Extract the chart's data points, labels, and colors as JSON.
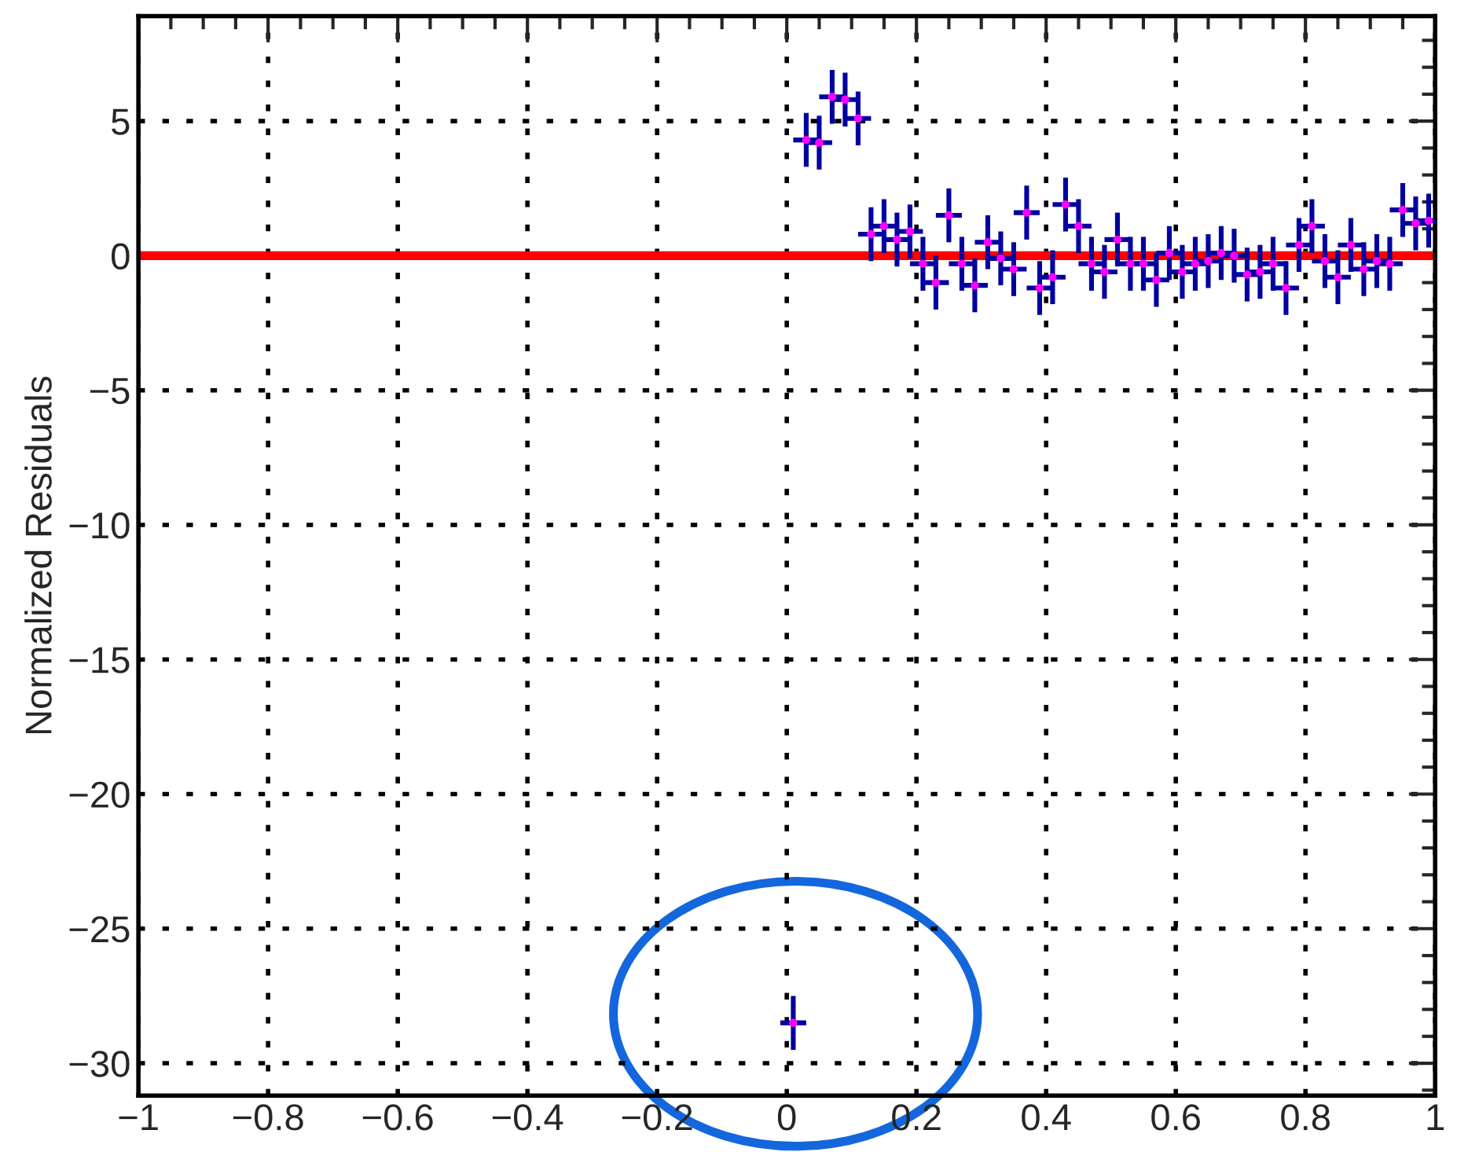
{
  "chart_data": {
    "type": "scatter",
    "ylabel": "Normalized Residuals",
    "xlim": [
      -1,
      1
    ],
    "ylim": [
      -31.2,
      8.9
    ],
    "xticks": [
      {
        "value": -1,
        "label": "−1"
      },
      {
        "value": -0.8,
        "label": "−0.8"
      },
      {
        "value": -0.6,
        "label": "−0.6"
      },
      {
        "value": -0.4,
        "label": "−0.4"
      },
      {
        "value": -0.2,
        "label": "−0.2"
      },
      0,
      0.2,
      0.4,
      0.6,
      0.8,
      1
    ],
    "yticks": [
      {
        "value": -30,
        "label": "−30"
      },
      {
        "value": -25,
        "label": "−25"
      },
      {
        "value": -20,
        "label": "−20"
      },
      {
        "value": -15,
        "label": "−15"
      },
      {
        "value": -10,
        "label": "−10"
      },
      {
        "value": -5,
        "label": "−5"
      },
      0,
      5
    ],
    "grid": true,
    "marker": "circle",
    "ref_lines": [
      {
        "axis": "y",
        "value": 0,
        "color": "#ff0000",
        "line_style": "solid"
      }
    ],
    "series": [
      {
        "color": "#ff00ff",
        "x": [
          0.01,
          0.03,
          0.05,
          0.07,
          0.09,
          0.11,
          0.13,
          0.15,
          0.17,
          0.19,
          0.21,
          0.23,
          0.25,
          0.27,
          0.29,
          0.31,
          0.33,
          0.35,
          0.37,
          0.39,
          0.41,
          0.43,
          0.45,
          0.47,
          0.49,
          0.51,
          0.53,
          0.55,
          0.57,
          0.59,
          0.61,
          0.63,
          0.65,
          0.67,
          0.69,
          0.71,
          0.73,
          0.75,
          0.77,
          0.79,
          0.81,
          0.83,
          0.85,
          0.87,
          0.89,
          0.91,
          0.93,
          0.95,
          0.97,
          0.99
        ],
        "values": [
          -28.5,
          4.3,
          4.2,
          5.9,
          5.8,
          5.1,
          0.8,
          1.1,
          0.6,
          0.9,
          -0.3,
          -1.0,
          1.5,
          -0.3,
          -1.1,
          0.5,
          -0.1,
          -0.5,
          1.6,
          -1.2,
          -0.8,
          1.9,
          1.1,
          -0.3,
          -0.6,
          0.6,
          -0.3,
          -0.3,
          -0.9,
          0.1,
          -0.6,
          -0.3,
          -0.2,
          0.1,
          0.0,
          -0.7,
          -0.6,
          -0.3,
          -1.2,
          0.4,
          1.1,
          -0.2,
          -0.8,
          0.4,
          -0.5,
          -0.2,
          -0.3,
          1.7,
          1.2,
          1.3
        ],
        "errors": [
          1,
          1,
          1,
          1,
          1,
          1,
          1,
          1,
          1,
          1,
          1,
          1,
          1,
          1,
          1,
          1,
          1,
          1,
          1,
          1,
          1,
          1,
          1,
          1,
          1,
          1,
          1,
          1,
          1,
          1,
          1,
          1,
          1,
          1,
          1,
          1,
          1,
          1,
          1,
          1,
          1,
          1,
          1,
          1,
          1,
          1,
          1,
          1,
          1,
          1
        ],
        "xerrors": [
          0.02,
          0.02,
          0.02,
          0.02,
          0.02,
          0.02,
          0.02,
          0.02,
          0.02,
          0.02,
          0.02,
          0.02,
          0.02,
          0.02,
          0.02,
          0.02,
          0.02,
          0.02,
          0.02,
          0.02,
          0.02,
          0.02,
          0.02,
          0.02,
          0.02,
          0.02,
          0.02,
          0.02,
          0.02,
          0.02,
          0.02,
          0.02,
          0.02,
          0.02,
          0.02,
          0.02,
          0.02,
          0.02,
          0.02,
          0.02,
          0.02,
          0.02,
          0.02,
          0.02,
          0.02,
          0.02,
          0.02,
          0.02,
          0.02,
          0.02
        ]
      }
    ]
  }
}
